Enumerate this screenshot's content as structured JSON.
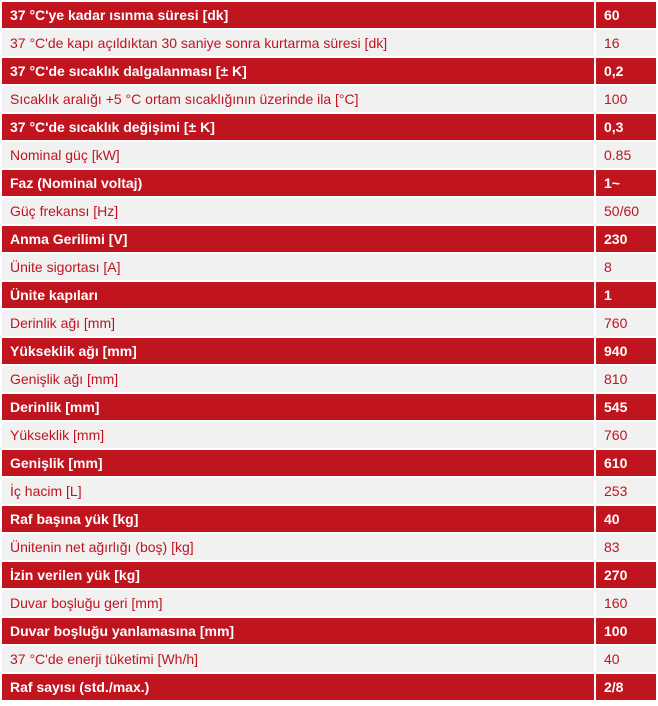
{
  "spec_rows": [
    {
      "label": "37 °C'ye kadar ısınma süresi [dk]",
      "value": "60"
    },
    {
      "label": "37 °C'de kapı açıldıktan 30 saniye sonra kurtarma süresi [dk]",
      "value": "16"
    },
    {
      "label": "37 °C'de sıcaklık dalgalanması [± K]",
      "value": "0,2"
    },
    {
      "label": "Sıcaklık aralığı +5 °C ortam sıcaklığının üzerinde ila [°C]",
      "value": "100"
    },
    {
      "label": "37 °C'de sıcaklık değişimi [± K]",
      "value": "0,3"
    },
    {
      "label": "Nominal güç [kW]",
      "value": "0.85"
    },
    {
      "label": "Faz (Nominal voltaj)",
      "value": "1~"
    },
    {
      "label": "Güç frekansı [Hz]",
      "value": "50/60"
    },
    {
      "label": "Anma Gerilimi [V]",
      "value": "230"
    },
    {
      "label": "Ünite sigortası [A]",
      "value": "8"
    },
    {
      "label": "Ünite kapıları",
      "value": "1"
    },
    {
      "label": "Derinlik ağı [mm]",
      "value": "760"
    },
    {
      "label": "Yükseklik ağı [mm]",
      "value": "940"
    },
    {
      "label": "Genişlik ağı [mm]",
      "value": "810"
    },
    {
      "label": "Derinlik [mm]",
      "value": "545"
    },
    {
      "label": "Yükseklik [mm]",
      "value": "760"
    },
    {
      "label": "Genişlik [mm]",
      "value": "610"
    },
    {
      "label": "İç hacim [L]",
      "value": "253"
    },
    {
      "label": "Raf başına yük [kg]",
      "value": "40"
    },
    {
      "label": "Ünitenin net ağırlığı (boş) [kg]",
      "value": "83"
    },
    {
      "label": "İzin verilen yük [kg]",
      "value": "270"
    },
    {
      "label": "Duvar boşluğu geri [mm]",
      "value": "160"
    },
    {
      "label": "Duvar boşluğu yanlamasına [mm]",
      "value": "100"
    },
    {
      "label": "37 °C'de enerji tüketimi [Wh/h]",
      "value": "40"
    },
    {
      "label": "Raf sayısı (std./max.)",
      "value": "2/8"
    }
  ],
  "colors": {
    "accent_red": "#c0141f",
    "light_row": "#f1f1f1",
    "separator": "#ffffff"
  }
}
